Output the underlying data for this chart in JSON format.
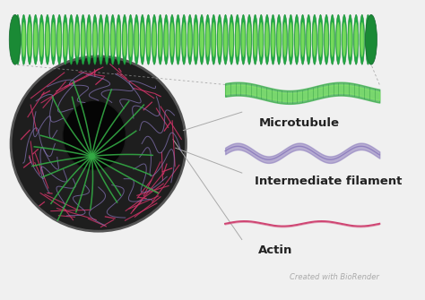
{
  "bg_color": "#f0f0f0",
  "cell_color": "#1e1e1e",
  "cell_border_color": "#555555",
  "nucleus_color": "#080808",
  "actin_color": "#cc3366",
  "intermediate_color": "#8877bb",
  "microtubule_color": "#33aa44",
  "actin_label": "Actin",
  "intermediate_label": "Intermediate filament",
  "microtubule_label": "Microtubule",
  "watermark": "Created with BioRender",
  "label_color": "#222222",
  "label_fontsize": 8,
  "watermark_fontsize": 6
}
